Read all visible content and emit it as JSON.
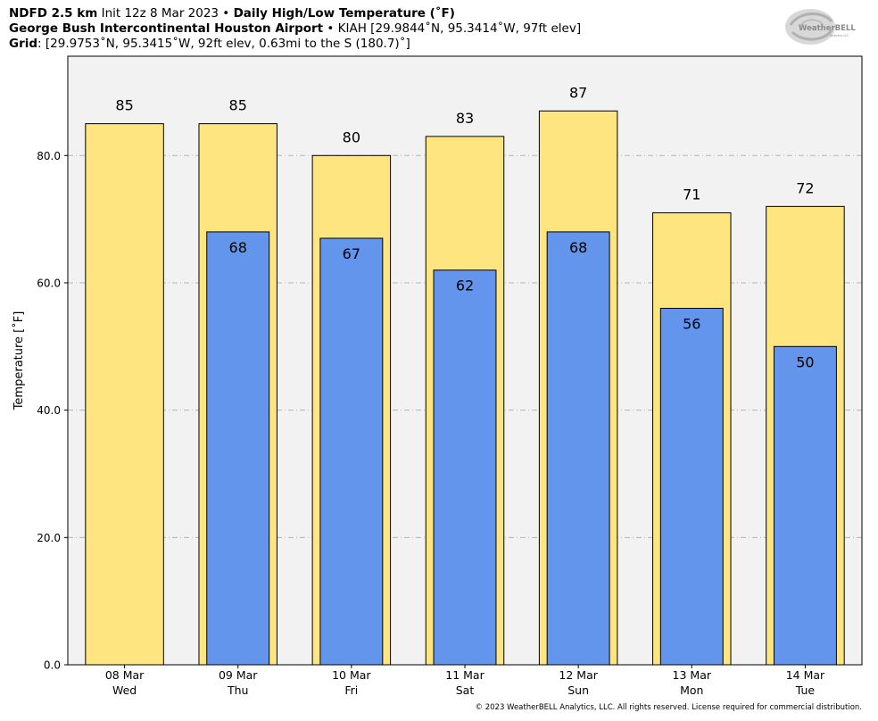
{
  "header": {
    "line1_bold1": "NDFD 2.5 km",
    "line1_text": " Init 12z 8 Mar 2023 • ",
    "line1_bold2": "Daily High/Low Temperature (˚F)",
    "line2_bold": "George Bush Intercontinental Houston Airport",
    "line2_text": " • KIAH [29.9844˚N, 95.3414˚W, 97ft elev]",
    "line3_bold": "Grid",
    "line3_text": ": [29.9753˚N, 95.3415˚W, 92ft elev, 0.63mi to the S (180.7)˚]"
  },
  "logo": {
    "text": "WeatherBELL",
    "subtext": "Analytics LLC"
  },
  "copyright": "© 2023 WeatherBELL Analytics, LLC. All rights reserved. License required for commercial distribution.",
  "chart_data": {
    "type": "bar",
    "title": "Daily High/Low Temperature (˚F)",
    "ylabel": "Temperature [˚F]",
    "ylim": [
      0,
      95.6
    ],
    "yticks": [
      "0.0",
      "20.0",
      "40.0",
      "60.0",
      "80.0"
    ],
    "ytick_values": [
      0,
      20,
      40,
      60,
      80
    ],
    "grid": true,
    "categories": [
      "08 Mar\nWed",
      "09 Mar\nThu",
      "10 Mar\nFri",
      "11 Mar\nSat",
      "12 Mar\nSun",
      "13 Mar\nMon",
      "14 Mar\nTue"
    ],
    "category_dates": [
      "08 Mar",
      "09 Mar",
      "10 Mar",
      "11 Mar",
      "12 Mar",
      "13 Mar",
      "14 Mar"
    ],
    "category_days": [
      "Wed",
      "Thu",
      "Fri",
      "Sat",
      "Sun",
      "Mon",
      "Tue"
    ],
    "series": [
      {
        "values": [
          85,
          85,
          80,
          83,
          87,
          71,
          72
        ],
        "color": "#ffe57f"
      },
      {
        "values": [
          null,
          68,
          67,
          62,
          68,
          56,
          50
        ],
        "color": "#6495ed"
      }
    ]
  }
}
